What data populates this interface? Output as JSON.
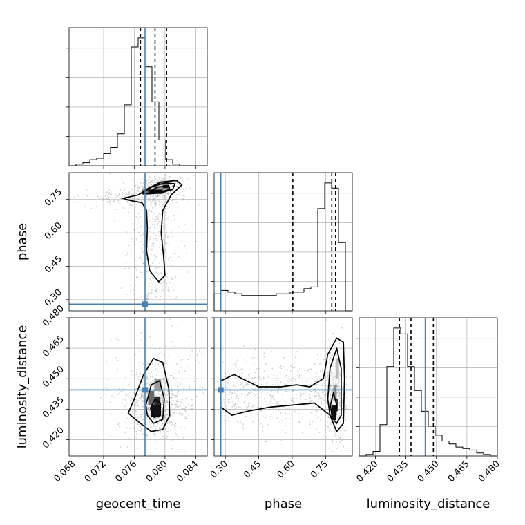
{
  "chart_data": {
    "type": "corner",
    "parameters": [
      "geocent_time",
      "phase",
      "luminosity_distance"
    ],
    "axis_ranges": {
      "geocent_time": [
        0.0675,
        0.0855
      ],
      "phase": [
        0.25,
        0.87
      ],
      "luminosity_distance": [
        0.412,
        0.48
      ]
    },
    "ticks": {
      "geocent_time": [
        "0.068",
        "0.072",
        "0.076",
        "0.080",
        "0.084"
      ],
      "phase": [
        "0.30",
        "0.45",
        "0.60",
        "0.75"
      ],
      "luminosity_distance": [
        "0.420",
        "0.435",
        "0.450",
        "0.465",
        "0.480"
      ]
    },
    "injection_values": {
      "geocent_time": 0.0774,
      "phase": 0.28,
      "luminosity_distance": 0.4445
    },
    "quantiles": {
      "geocent_time": [
        0.0768,
        0.0787,
        0.0802
      ],
      "phase": [
        0.603,
        0.778,
        0.795
      ],
      "luminosity_distance": [
        0.4318,
        0.4375,
        0.4485
      ]
    },
    "histograms": {
      "geocent_time": {
        "edges_start": 0.0675,
        "bin_width": 0.0009,
        "counts": [
          0,
          1,
          2,
          4,
          5,
          8,
          12,
          21,
          40,
          78,
          84,
          65,
          42,
          17,
          4,
          1,
          0,
          0,
          0,
          0
        ]
      },
      "phase": {
        "edges_start": 0.25,
        "bin_width": 0.031,
        "counts": [
          10,
          12,
          11,
          10,
          9,
          9,
          9,
          9,
          9,
          10,
          10,
          11,
          11,
          13,
          14,
          60,
          75,
          72,
          40,
          0
        ]
      },
      "luminosity_distance": {
        "edges_start": 0.412,
        "bin_width": 0.0034,
        "counts": [
          0,
          1,
          3,
          21,
          60,
          86,
          82,
          60,
          44,
          30,
          20,
          14,
          10,
          8,
          6,
          5,
          4,
          2,
          1,
          0
        ]
      }
    },
    "colors": {
      "truth": "#4682b4",
      "lines": "#000000",
      "grid": "#b0b0b0"
    },
    "grid": true
  }
}
